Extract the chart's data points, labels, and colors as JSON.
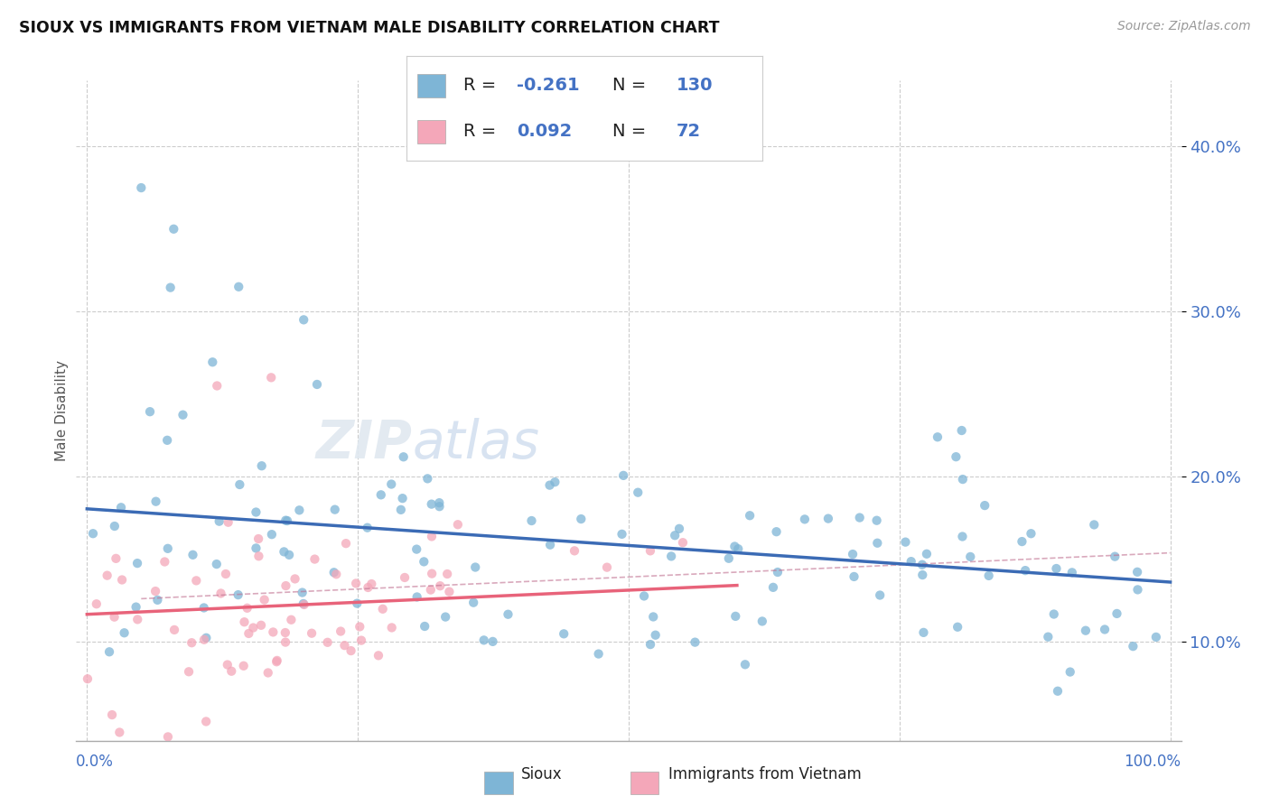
{
  "title": "SIOUX VS IMMIGRANTS FROM VIETNAM MALE DISABILITY CORRELATION CHART",
  "source": "Source: ZipAtlas.com",
  "ylabel": "Male Disability",
  "legend_label1": "Sioux",
  "legend_label2": "Immigrants from Vietnam",
  "R1": -0.261,
  "N1": 130,
  "R2": 0.092,
  "N2": 72,
  "color_blue": "#7EB5D6",
  "color_pink": "#F4A7B9",
  "color_blue_line": "#3B6BB5",
  "color_pink_line": "#E8637A",
  "text_color": "#4472C4",
  "grid_color": "#CCCCCC",
  "yticks": [
    10,
    20,
    30,
    40
  ],
  "xlim": [
    0,
    100
  ],
  "ylim": [
    4,
    44
  ]
}
